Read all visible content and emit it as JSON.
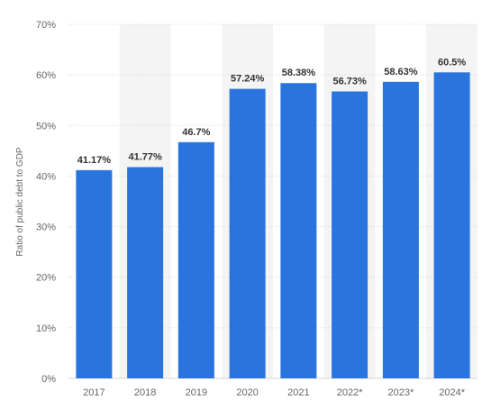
{
  "chart_data": {
    "type": "bar",
    "ylabel": "Ratio of public debt to GDP",
    "xlabel": "",
    "categories": [
      "2017",
      "2018",
      "2019",
      "2020",
      "2021",
      "2022*",
      "2023*",
      "2024*"
    ],
    "values": [
      41.17,
      41.77,
      46.7,
      57.24,
      58.38,
      56.73,
      58.63,
      60.5
    ],
    "value_labels": [
      "41.17%",
      "41.77%",
      "46.7%",
      "57.24%",
      "58.38%",
      "56.73%",
      "58.63%",
      "60.5%"
    ],
    "ylim": [
      0,
      70
    ],
    "yticks": [
      0,
      10,
      20,
      30,
      40,
      50,
      60,
      70
    ],
    "ytick_labels": [
      "0%",
      "10%",
      "20%",
      "30%",
      "40%",
      "50%",
      "60%",
      "70%"
    ],
    "grid": true,
    "legend": "none",
    "alternating_column_shading": true,
    "colors": {
      "bar": "#2a74de",
      "band": "#f4f4f4",
      "grid": "#d5d5d5",
      "axis_text": "#666666",
      "value_text": "#333333"
    }
  }
}
